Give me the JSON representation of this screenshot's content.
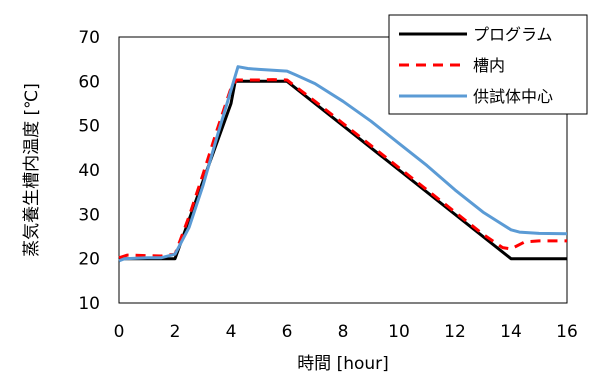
{
  "chart_data": {
    "type": "line",
    "xlabel": "時間 [hour]",
    "ylabel": "蒸気養生槽内温度 [℃]",
    "xlim": [
      0,
      16
    ],
    "ylim": [
      10,
      70
    ],
    "xticks": [
      0,
      2,
      4,
      6,
      8,
      10,
      12,
      14,
      16
    ],
    "yticks": [
      10,
      20,
      30,
      40,
      50,
      60,
      70
    ],
    "grid": false,
    "legend_position": "top-right",
    "series": [
      {
        "name": "プログラム",
        "color": "#000000",
        "dash": "solid",
        "x": [
          0,
          2,
          4,
          4.15,
          6,
          14,
          16
        ],
        "y": [
          20,
          20,
          55,
          60,
          60,
          20,
          20
        ]
      },
      {
        "name": "槽内",
        "color": "#ff0000",
        "dash": "dashed",
        "x": [
          0,
          0.3,
          1.0,
          1.5,
          2.0,
          2.5,
          3.0,
          3.5,
          4.0,
          4.2,
          5.0,
          5.5,
          6.0,
          7.0,
          8.0,
          9.0,
          10.0,
          11.0,
          12.0,
          13.0,
          13.7,
          14.0,
          14.5,
          15.0,
          16.0
        ],
        "y": [
          20.2,
          20.8,
          20.7,
          20.6,
          21.0,
          29.5,
          39.0,
          49.0,
          58.5,
          60.3,
          60.3,
          60.4,
          60.3,
          55.5,
          50.5,
          45.5,
          40.5,
          35.5,
          30.5,
          25.5,
          22.5,
          22.2,
          23.8,
          24.0,
          24.0
        ]
      },
      {
        "name": "供試体中心",
        "color": "#5b9bd5",
        "dash": "solid",
        "x": [
          0,
          0.2,
          1.0,
          1.5,
          2.0,
          2.5,
          3.0,
          3.5,
          4.0,
          4.25,
          4.6,
          5.0,
          5.5,
          6.0,
          6.3,
          7.0,
          8.0,
          9.0,
          10.0,
          11.0,
          12.0,
          13.0,
          13.5,
          14.0,
          14.3,
          15.0,
          16.0
        ],
        "y": [
          19.5,
          20.0,
          20.2,
          20.2,
          21.0,
          27.0,
          36.5,
          47.5,
          58.0,
          63.3,
          62.9,
          62.7,
          62.5,
          62.3,
          61.5,
          59.5,
          55.5,
          51.0,
          46.0,
          41.0,
          35.5,
          30.5,
          28.5,
          26.5,
          26.0,
          25.7,
          25.6
        ]
      }
    ]
  }
}
